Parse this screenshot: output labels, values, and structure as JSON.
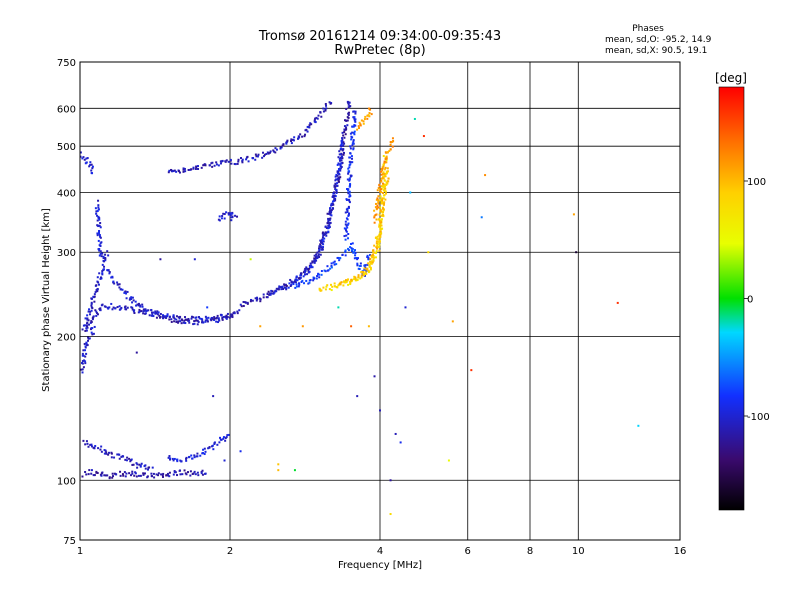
{
  "chart_data": {
    "type": "scatter",
    "title": "Tromsø 20161214 09:34:00-09:35:43",
    "subtitle": "RwPretec (8p)",
    "xlabel": "Frequency [MHz]",
    "ylabel": "Stationary phase Virtual Height [km]",
    "x_scale": "log",
    "y_scale": "log",
    "xlim": [
      1,
      16
    ],
    "ylim": [
      75,
      750
    ],
    "grid": true,
    "xticks": [
      1,
      2,
      4,
      6,
      8,
      10,
      16
    ],
    "xtick_labels": [
      "1",
      "2",
      "4",
      "6",
      "8",
      "10",
      "16"
    ],
    "yticks": [
      75,
      100,
      200,
      300,
      400,
      500,
      600,
      750
    ],
    "ytick_labels": [
      "75",
      "100",
      "200",
      "300",
      "400",
      "500",
      "600",
      "750"
    ],
    "colorbar": {
      "label": "[deg]",
      "range": [
        -180,
        180
      ],
      "tick_values": [
        100,
        0,
        -100
      ],
      "tick_labels": [
        "100",
        "0",
        "-100"
      ]
    },
    "phase_stats": {
      "title": "Phases",
      "line_O": "mean, sd,O: -95.2, 14.9",
      "line_X": "mean, sd,X:  90.5, 19.1"
    },
    "traces": [
      {
        "phase": -105,
        "points": [
          [
            1.02,
            210
          ],
          [
            1.04,
            222
          ],
          [
            1.06,
            236
          ],
          [
            1.08,
            254
          ],
          [
            1.1,
            268
          ],
          [
            1.12,
            278
          ],
          [
            1.15,
            270
          ],
          [
            1.18,
            258
          ],
          [
            1.22,
            248
          ],
          [
            1.26,
            240
          ],
          [
            1.3,
            234
          ],
          [
            1.36,
            228
          ],
          [
            1.42,
            224
          ],
          [
            1.5,
            220
          ],
          [
            1.6,
            218
          ],
          [
            1.7,
            217
          ],
          [
            1.8,
            218
          ],
          [
            1.9,
            220
          ],
          [
            2.0,
            222
          ],
          [
            2.1,
            225
          ]
        ]
      },
      {
        "phase": -110,
        "points": [
          [
            1.02,
            205
          ],
          [
            1.05,
            215
          ],
          [
            1.08,
            225
          ],
          [
            1.12,
            232
          ],
          [
            1.18,
            230
          ],
          [
            1.25,
            228
          ],
          [
            1.35,
            224
          ],
          [
            1.45,
            220
          ],
          [
            1.55,
            216
          ],
          [
            1.65,
            214
          ],
          [
            1.75,
            214
          ],
          [
            1.85,
            216
          ],
          [
            1.95,
            218
          ],
          [
            2.05,
            222
          ]
        ]
      },
      {
        "phase": -100,
        "points": [
          [
            1.08,
            380
          ],
          [
            1.09,
            340
          ],
          [
            1.1,
            300
          ],
          [
            1.11,
            285
          ],
          [
            1.12,
            290
          ],
          [
            1.14,
            300
          ]
        ]
      },
      {
        "phase": -105,
        "points": [
          [
            1.01,
            170
          ],
          [
            1.02,
            182
          ],
          [
            1.03,
            195
          ],
          [
            1.05,
            200
          ],
          [
            1.07,
            210
          ]
        ]
      },
      {
        "phase": -115,
        "points": [
          [
            2.1,
            232
          ],
          [
            2.3,
            240
          ],
          [
            2.5,
            250
          ],
          [
            2.7,
            262
          ],
          [
            2.9,
            280
          ],
          [
            3.0,
            300
          ],
          [
            3.1,
            330
          ],
          [
            3.2,
            370
          ],
          [
            3.3,
            430
          ],
          [
            3.35,
            480
          ],
          [
            3.4,
            540
          ],
          [
            3.45,
            600
          ],
          [
            3.48,
            630
          ]
        ]
      },
      {
        "phase": -100,
        "points": [
          [
            2.4,
            245
          ],
          [
            2.6,
            255
          ],
          [
            2.8,
            268
          ],
          [
            2.95,
            285
          ],
          [
            3.05,
            305
          ],
          [
            3.15,
            340
          ],
          [
            3.25,
            400
          ],
          [
            3.32,
            460
          ],
          [
            3.38,
            520
          ]
        ]
      },
      {
        "phase": -90,
        "points": [
          [
            3.42,
            320
          ],
          [
            3.44,
            360
          ],
          [
            3.46,
            400
          ],
          [
            3.48,
            440
          ],
          [
            3.5,
            480
          ],
          [
            3.52,
            520
          ],
          [
            3.54,
            560
          ],
          [
            3.56,
            600
          ]
        ]
      },
      {
        "phase": -80,
        "points": [
          [
            2.7,
            255
          ],
          [
            2.9,
            262
          ],
          [
            3.1,
            275
          ],
          [
            3.3,
            290
          ],
          [
            3.5,
            310
          ],
          [
            3.6,
            290
          ],
          [
            3.7,
            270
          ],
          [
            3.8,
            300
          ]
        ]
      },
      {
        "phase": 80,
        "points": [
          [
            3.0,
            250
          ],
          [
            3.2,
            255
          ],
          [
            3.4,
            258
          ],
          [
            3.6,
            262
          ],
          [
            3.75,
            270
          ],
          [
            3.85,
            285
          ],
          [
            3.95,
            300
          ],
          [
            4.0,
            330
          ],
          [
            4.03,
            360
          ],
          [
            4.05,
            400
          ],
          [
            4.08,
            440
          ],
          [
            4.1,
            480
          ]
        ]
      },
      {
        "phase": 95,
        "points": [
          [
            3.3,
            255
          ],
          [
            3.5,
            262
          ],
          [
            3.65,
            270
          ],
          [
            3.8,
            280
          ],
          [
            3.9,
            300
          ],
          [
            3.98,
            330
          ],
          [
            4.04,
            370
          ],
          [
            4.1,
            410
          ],
          [
            4.15,
            450
          ]
        ]
      },
      {
        "phase": 115,
        "points": [
          [
            3.9,
            350
          ],
          [
            3.95,
            380
          ],
          [
            4.0,
            410
          ],
          [
            4.05,
            440
          ],
          [
            4.1,
            470
          ],
          [
            4.2,
            500
          ],
          [
            4.25,
            520
          ]
        ]
      },
      {
        "phase": 110,
        "points": [
          [
            3.6,
            540
          ],
          [
            3.7,
            560
          ],
          [
            3.8,
            580
          ],
          [
            3.85,
            600
          ]
        ]
      },
      {
        "phase": -110,
        "points": [
          [
            1.5,
            440
          ],
          [
            1.6,
            445
          ],
          [
            1.7,
            450
          ],
          [
            1.8,
            455
          ],
          [
            1.9,
            460
          ],
          [
            2.0,
            462
          ],
          [
            2.2,
            470
          ],
          [
            2.4,
            485
          ],
          [
            2.6,
            505
          ],
          [
            2.8,
            530
          ],
          [
            3.0,
            570
          ],
          [
            3.1,
            600
          ],
          [
            3.2,
            620
          ]
        ]
      },
      {
        "phase": -105,
        "points": [
          [
            1.9,
            350
          ],
          [
            1.95,
            360
          ],
          [
            2.0,
            365
          ],
          [
            2.05,
            358
          ],
          [
            2.0,
            350
          ]
        ]
      },
      {
        "phase": -115,
        "points": [
          [
            1.02,
            103
          ],
          [
            1.05,
            104
          ],
          [
            1.1,
            103
          ],
          [
            1.15,
            102
          ],
          [
            1.2,
            103
          ],
          [
            1.3,
            103
          ],
          [
            1.4,
            102
          ],
          [
            1.5,
            103
          ],
          [
            1.6,
            104
          ],
          [
            1.7,
            103
          ],
          [
            1.8,
            104
          ]
        ]
      },
      {
        "phase": -110,
        "points": [
          [
            1.02,
            120
          ],
          [
            1.05,
            118
          ],
          [
            1.1,
            116
          ],
          [
            1.15,
            113
          ],
          [
            1.2,
            112
          ],
          [
            1.25,
            110
          ],
          [
            1.3,
            108
          ],
          [
            1.35,
            106
          ],
          [
            1.4,
            105
          ]
        ]
      },
      {
        "phase": -100,
        "points": [
          [
            1.5,
            112
          ],
          [
            1.6,
            110
          ],
          [
            1.7,
            112
          ],
          [
            1.8,
            116
          ],
          [
            1.9,
            120
          ],
          [
            2.0,
            125
          ]
        ]
      },
      {
        "phase": -105,
        "points": [
          [
            1.0,
            480
          ],
          [
            1.03,
            470
          ],
          [
            1.05,
            450
          ],
          [
            1.07,
            440
          ]
        ]
      }
    ],
    "scattered_points": [
      [
        2.2,
        290,
        40
      ],
      [
        2.3,
        210,
        110
      ],
      [
        2.5,
        105,
        100
      ],
      [
        2.5,
        108,
        95
      ],
      [
        2.7,
        105,
        -5
      ],
      [
        2.8,
        210,
        115
      ],
      [
        3.2,
        250,
        60
      ],
      [
        3.3,
        230,
        -20
      ],
      [
        3.5,
        210,
        140
      ],
      [
        3.6,
        150,
        -110
      ],
      [
        3.8,
        210,
        100
      ],
      [
        3.9,
        165,
        -115
      ],
      [
        4.0,
        140,
        -110
      ],
      [
        4.2,
        100,
        -120
      ],
      [
        4.2,
        85,
        80
      ],
      [
        4.3,
        125,
        -110
      ],
      [
        4.4,
        120,
        -90
      ],
      [
        4.5,
        230,
        -100
      ],
      [
        4.6,
        400,
        -40
      ],
      [
        4.7,
        570,
        -20
      ],
      [
        4.9,
        525,
        160
      ],
      [
        5.0,
        300,
        80
      ],
      [
        5.5,
        110,
        50
      ],
      [
        5.6,
        215,
        110
      ],
      [
        6.1,
        170,
        160
      ],
      [
        6.5,
        435,
        120
      ],
      [
        6.4,
        355,
        -60
      ],
      [
        9.8,
        360,
        110
      ],
      [
        9.9,
        300,
        -160
      ],
      [
        12.0,
        235,
        160
      ],
      [
        13.2,
        130,
        -30
      ],
      [
        1.45,
        290,
        -120
      ],
      [
        1.7,
        290,
        -100
      ],
      [
        1.8,
        230,
        -80
      ],
      [
        2.1,
        115,
        -90
      ],
      [
        1.3,
        185,
        -120
      ],
      [
        1.85,
        150,
        -110
      ],
      [
        1.95,
        110,
        -100
      ]
    ]
  }
}
